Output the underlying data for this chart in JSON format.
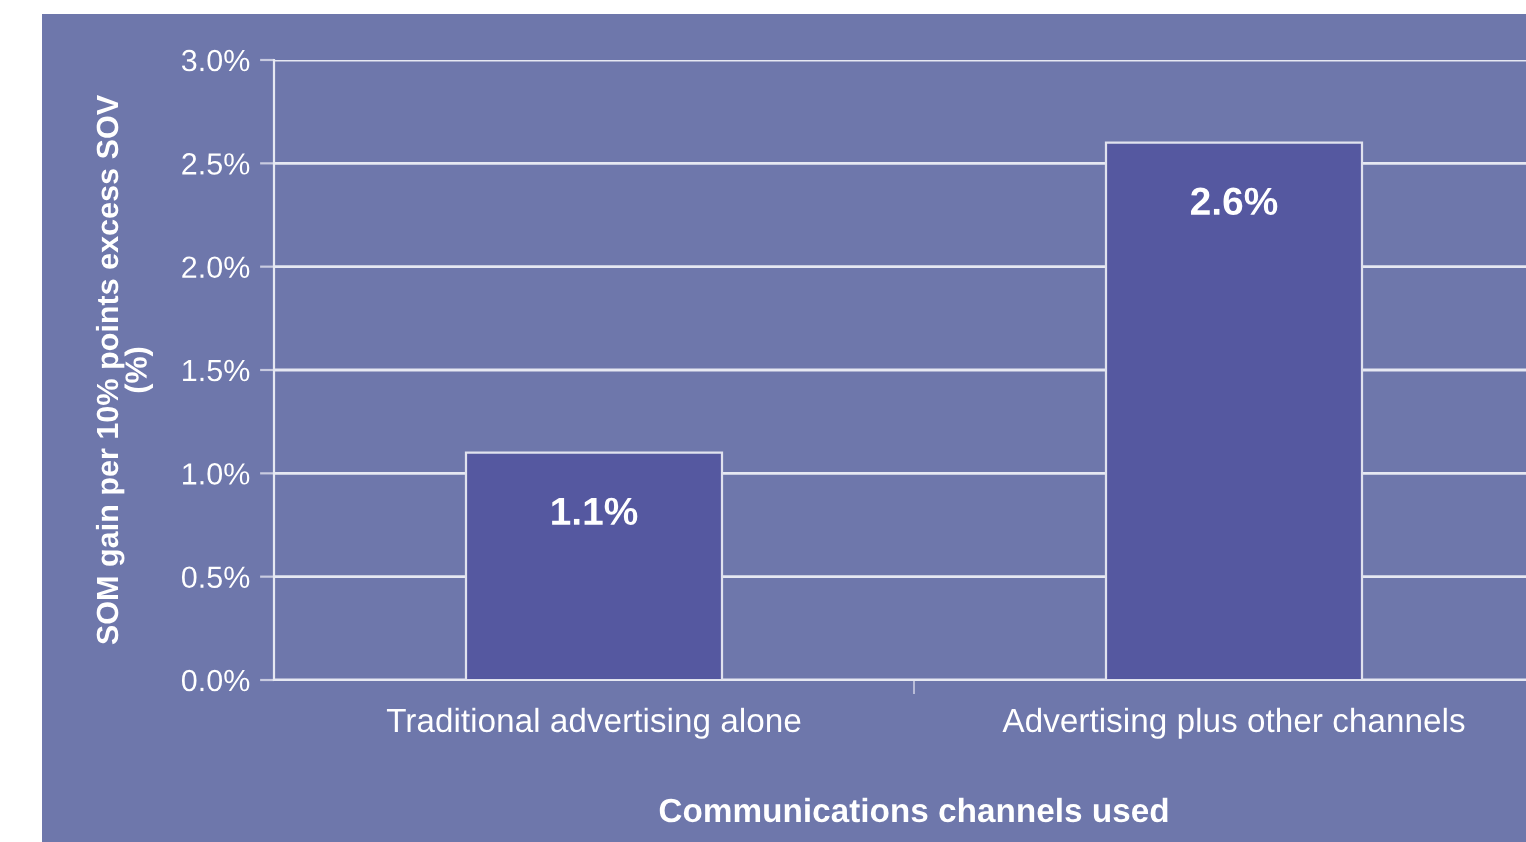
{
  "chart_data": {
    "type": "bar",
    "xlabel": "Communications channels used",
    "ylabel": "SOM gain per 10% points excess SOV\n(%)",
    "categories": [
      "Traditional advertising alone",
      "Advertising plus other channels"
    ],
    "values": [
      1.1,
      2.6
    ],
    "value_labels": [
      "1.1%",
      "2.6%"
    ],
    "color": "#5558a0",
    "ylim": [
      0,
      3
    ],
    "yticks": [
      {
        "value": 0,
        "label": "0.0%"
      },
      {
        "value": 0.5,
        "label": "0.5%"
      },
      {
        "value": 1,
        "label": "1.0%"
      },
      {
        "value": 1.5,
        "label": "1.5%"
      },
      {
        "value": 2,
        "label": "2.0%"
      },
      {
        "value": 2.5,
        "label": "2.5%"
      },
      {
        "value": 3,
        "label": "3.0%"
      }
    ],
    "grid": "y",
    "legend": false
  }
}
